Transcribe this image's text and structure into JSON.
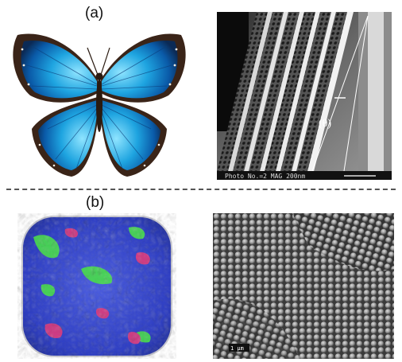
{
  "figure": {
    "panel_a_label": "(a)",
    "panel_b_label": "(b)",
    "sem_scales": {
      "top_caption": "Photo No.=2  MAG 200nm",
      "top_angle": "(θ)",
      "bottom_scale": "1 μm"
    },
    "colors": {
      "butterfly_blue": "#1ea4e0",
      "butterfly_edge": "#3a2418",
      "opal_base": "#2e3ec4",
      "opal_green": "#48e04a",
      "opal_pink": "#e03a7c"
    }
  }
}
